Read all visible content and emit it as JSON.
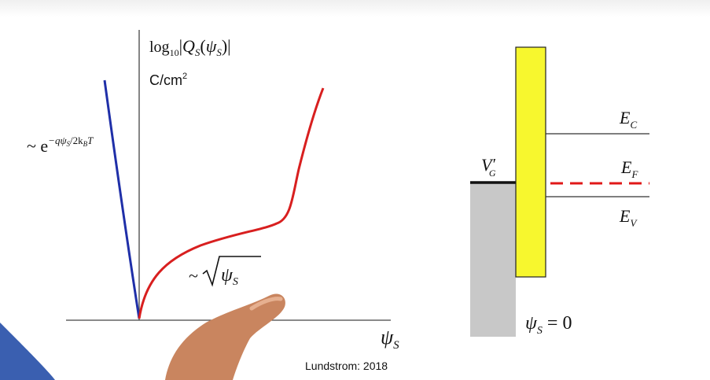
{
  "colors": {
    "accumulation_curve": "#1f2fa8",
    "depletion_curve": "#d81f1f",
    "oxide": "#f7f72e",
    "gate": "#c8c8c8",
    "fermi_level": "#e01818",
    "axis": "#444444"
  },
  "plot": {
    "y_label_func": "log",
    "y_label_sub": "10",
    "y_label_Q": "Q",
    "y_label_Qsub": "S",
    "y_label_psi": "ψ",
    "y_label_psisub": "S",
    "y_units": "C/cm",
    "y_units_sup": "2",
    "x_label": "ψ",
    "x_label_sub": "S",
    "accum_prefix": "~ e",
    "accum_exponent": "−qψ",
    "accum_exp_sub": "S",
    "accum_exp_tail": "/2k",
    "accum_exp_kb_sub": "B",
    "accum_exp_T": "T",
    "depl_prefix": "~",
    "depl_psi": "ψ",
    "depl_psi_sub": "S"
  },
  "band_diagram": {
    "gate_label": "V",
    "gate_label_sub": "G",
    "gate_label_prime": "′",
    "ec_label": "E",
    "ec_sub": "C",
    "ef_label": "E",
    "ef_sub": "F",
    "ev_label": "E",
    "ev_sub": "V",
    "condition_psi": "ψ",
    "condition_sub": "S",
    "condition_eq": "= 0"
  },
  "credit": "Lundstrom: 2018"
}
